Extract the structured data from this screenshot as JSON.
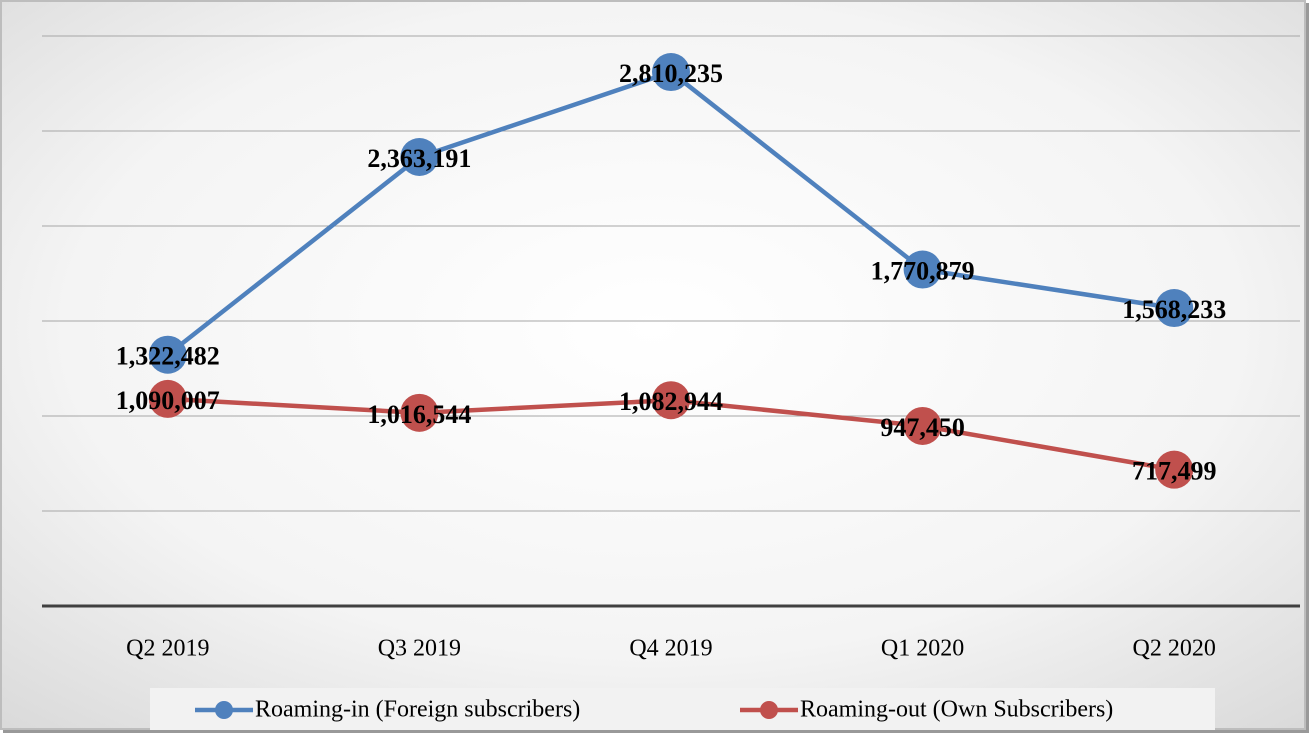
{
  "chart_data": {
    "type": "line",
    "categories": [
      "Q2 2019",
      "Q3 2019",
      "Q4 2019",
      "Q1 2020",
      "Q2 2020"
    ],
    "series": [
      {
        "name": "Roaming-in (Foreign subscribers)",
        "color": "#4f81bd",
        "values": [
          1322482,
          2363191,
          2810235,
          1770879,
          1568233
        ],
        "value_labels": [
          "1,322,482",
          "2,363,191",
          "2,810,235",
          "1,770,879",
          "1,568,233"
        ]
      },
      {
        "name": "Roaming-out (Own Subscribers)",
        "color": "#c0504d",
        "values": [
          1090007,
          1016544,
          1082944,
          947450,
          717499
        ],
        "value_labels": [
          "1,090,007",
          "1,016,544",
          "1,082,944",
          "947,450",
          "717,499"
        ]
      }
    ],
    "ylim": [
      0,
      3000000
    ],
    "yticks": [
      0,
      500000,
      1000000,
      1500000,
      2000000,
      2500000,
      3000000
    ],
    "grid": true,
    "legend": "bottom"
  }
}
